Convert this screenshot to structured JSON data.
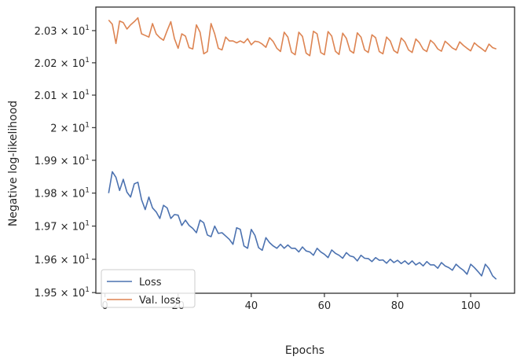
{
  "chart_data": {
    "type": "line",
    "xlabel": "Epochs",
    "ylabel": "Negative log-likelihood",
    "xlim": [
      -2.5,
      112
    ],
    "ylim": [
      19.498,
      20.3735
    ],
    "y_scale": "log",
    "grid": false,
    "legend_position": "lower-left",
    "x_ticks": [
      0,
      20,
      40,
      60,
      80,
      100
    ],
    "x_tick_labels": [
      "0",
      "20",
      "40",
      "60",
      "80",
      "100"
    ],
    "y_ticks": [
      {
        "value": 19.5,
        "mantissa": "1.95",
        "exponent": "1"
      },
      {
        "value": 19.6,
        "mantissa": "1.96",
        "exponent": "1"
      },
      {
        "value": 19.7,
        "mantissa": "1.97",
        "exponent": "1"
      },
      {
        "value": 19.8,
        "mantissa": "1.98",
        "exponent": "1"
      },
      {
        "value": 19.9,
        "mantissa": "1.99",
        "exponent": "1"
      },
      {
        "value": 20.0,
        "mantissa": "2",
        "exponent": "1"
      },
      {
        "value": 20.1,
        "mantissa": "2.01",
        "exponent": "1"
      },
      {
        "value": 20.2,
        "mantissa": "2.02",
        "exponent": "1"
      },
      {
        "value": 20.3,
        "mantissa": "2.03",
        "exponent": "1"
      }
    ],
    "y_tick_base": "10",
    "x": [
      1,
      2,
      3,
      4,
      5,
      6,
      7,
      8,
      9,
      10,
      11,
      12,
      13,
      14,
      15,
      16,
      17,
      18,
      19,
      20,
      21,
      22,
      23,
      24,
      25,
      26,
      27,
      28,
      29,
      30,
      31,
      32,
      33,
      34,
      35,
      36,
      37,
      38,
      39,
      40,
      41,
      42,
      43,
      44,
      45,
      46,
      47,
      48,
      49,
      50,
      51,
      52,
      53,
      54,
      55,
      56,
      57,
      58,
      59,
      60,
      61,
      62,
      63,
      64,
      65,
      66,
      67,
      68,
      69,
      70,
      71,
      72,
      73,
      74,
      75,
      76,
      77,
      78,
      79,
      80,
      81,
      82,
      83,
      84,
      85,
      86,
      87,
      88,
      89,
      90,
      91,
      92,
      93,
      94,
      95,
      96,
      97,
      98,
      99,
      100,
      101,
      102,
      103,
      104,
      105,
      106,
      107
    ],
    "series": [
      {
        "name": "Loss",
        "color": "#4c72b0",
        "values": [
          19.8,
          19.865,
          19.848,
          19.808,
          19.842,
          19.803,
          19.788,
          19.828,
          19.833,
          19.78,
          19.75,
          19.788,
          19.755,
          19.743,
          19.723,
          19.763,
          19.755,
          19.723,
          19.735,
          19.733,
          19.702,
          19.718,
          19.702,
          19.693,
          19.68,
          19.718,
          19.71,
          19.673,
          19.668,
          19.7,
          19.678,
          19.68,
          19.67,
          19.66,
          19.645,
          19.695,
          19.69,
          19.64,
          19.633,
          19.69,
          19.672,
          19.635,
          19.627,
          19.665,
          19.65,
          19.64,
          19.633,
          19.645,
          19.633,
          19.643,
          19.633,
          19.633,
          19.622,
          19.637,
          19.625,
          19.622,
          19.612,
          19.633,
          19.622,
          19.615,
          19.605,
          19.628,
          19.618,
          19.612,
          19.603,
          19.62,
          19.61,
          19.607,
          19.595,
          19.612,
          19.603,
          19.602,
          19.593,
          19.605,
          19.597,
          19.598,
          19.588,
          19.6,
          19.59,
          19.597,
          19.587,
          19.595,
          19.585,
          19.595,
          19.583,
          19.59,
          19.58,
          19.593,
          19.583,
          19.583,
          19.573,
          19.59,
          19.58,
          19.575,
          19.567,
          19.585,
          19.575,
          19.567,
          19.555,
          19.585,
          19.575,
          19.563,
          19.55,
          19.585,
          19.572,
          19.55,
          19.54
        ]
      },
      {
        "name": "Val. loss",
        "color": "#dd8452",
        "values": [
          20.333,
          20.32,
          20.26,
          20.33,
          20.325,
          20.305,
          20.318,
          20.328,
          20.34,
          20.29,
          20.285,
          20.28,
          20.322,
          20.29,
          20.278,
          20.27,
          20.3,
          20.328,
          20.275,
          20.245,
          20.29,
          20.283,
          20.247,
          20.243,
          20.318,
          20.295,
          20.228,
          20.235,
          20.322,
          20.29,
          20.245,
          20.24,
          20.28,
          20.268,
          20.268,
          20.262,
          20.268,
          20.262,
          20.275,
          20.256,
          20.267,
          20.265,
          20.258,
          20.248,
          20.278,
          20.266,
          20.245,
          20.235,
          20.295,
          20.28,
          20.233,
          20.225,
          20.295,
          20.282,
          20.23,
          20.222,
          20.298,
          20.29,
          20.232,
          20.225,
          20.297,
          20.283,
          20.236,
          20.226,
          20.292,
          20.276,
          20.238,
          20.23,
          20.293,
          20.28,
          20.24,
          20.232,
          20.287,
          20.278,
          20.235,
          20.228,
          20.28,
          20.268,
          20.238,
          20.23,
          20.277,
          20.265,
          20.24,
          20.232,
          20.274,
          20.262,
          20.242,
          20.235,
          20.27,
          20.26,
          20.243,
          20.236,
          20.267,
          20.257,
          20.246,
          20.24,
          20.265,
          20.254,
          20.245,
          20.237,
          20.262,
          20.252,
          20.244,
          20.235,
          20.258,
          20.247,
          20.243
        ]
      }
    ]
  }
}
